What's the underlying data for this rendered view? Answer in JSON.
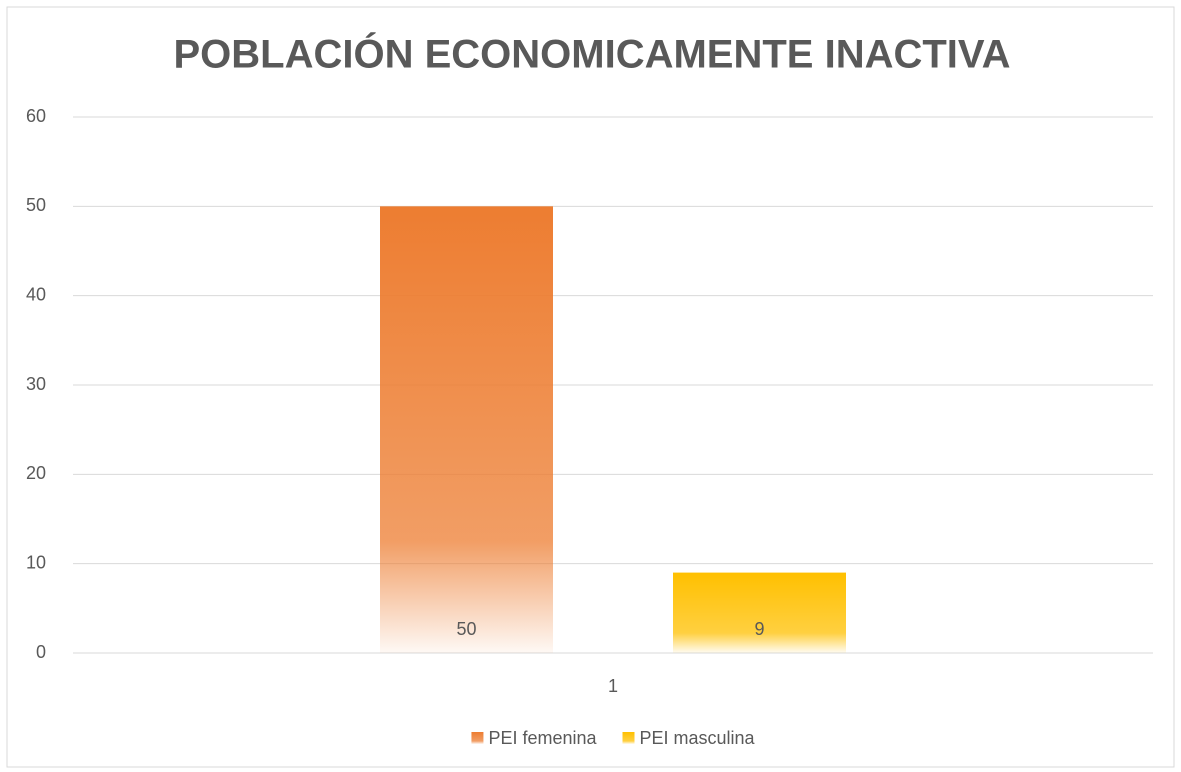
{
  "chart_data": {
    "type": "bar",
    "title": "POBLACIÓN ECONOMICAMENTE INACTIVA",
    "categories": [
      "1"
    ],
    "series": [
      {
        "name": "PEI femenina",
        "color": "#ed7d31",
        "values": [
          50
        ]
      },
      {
        "name": "PEI masculina",
        "color": "#ffc000",
        "values": [
          9
        ]
      }
    ],
    "ylim": [
      0,
      60
    ],
    "yticks": [
      0,
      10,
      20,
      30,
      40,
      50,
      60
    ],
    "grid": true,
    "legend": "bottom"
  }
}
